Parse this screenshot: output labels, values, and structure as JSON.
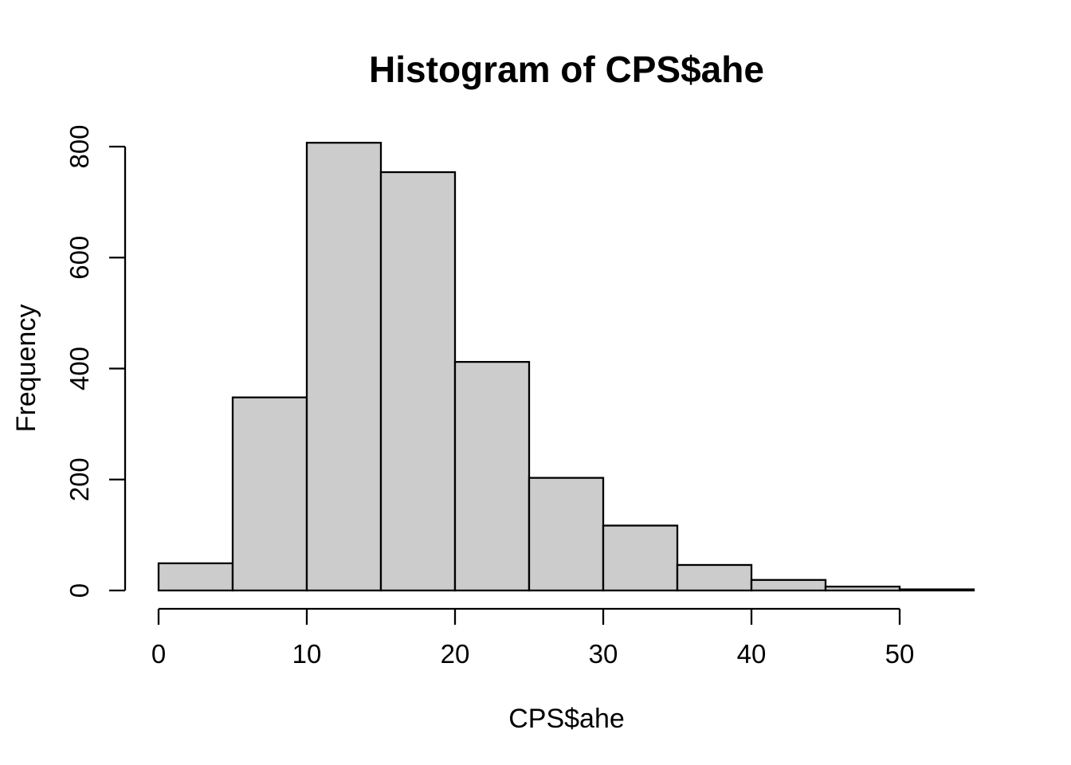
{
  "chart_data": {
    "type": "bar",
    "subtype": "histogram",
    "title": "Histogram of CPS$ahe",
    "xlabel": "CPS$ahe",
    "ylabel": "Frequency",
    "bin_edges": [
      0,
      5,
      10,
      15,
      20,
      25,
      30,
      35,
      40,
      45,
      50,
      55
    ],
    "frequencies": [
      49,
      348,
      807,
      754,
      412,
      203,
      117,
      46,
      19,
      7,
      2
    ],
    "categories": [
      "0-5",
      "5-10",
      "10-15",
      "15-20",
      "20-25",
      "25-30",
      "30-35",
      "35-40",
      "40-45",
      "45-50",
      "50-55"
    ],
    "x_ticks": [
      0,
      10,
      20,
      30,
      40,
      50
    ],
    "x_tick_labels": [
      "0",
      "10",
      "20",
      "30",
      "40",
      "50"
    ],
    "y_ticks": [
      0,
      200,
      400,
      600,
      800
    ],
    "y_tick_labels": [
      "0",
      "200",
      "400",
      "600",
      "800"
    ],
    "xlim": [
      0,
      55
    ],
    "ylim": [
      0,
      810
    ],
    "grid": "off",
    "legend": "none",
    "colors": {
      "bar_fill": "#cccccc",
      "bar_stroke": "#000000",
      "axis": "#000000",
      "text": "#000000",
      "background": "#ffffff"
    }
  }
}
